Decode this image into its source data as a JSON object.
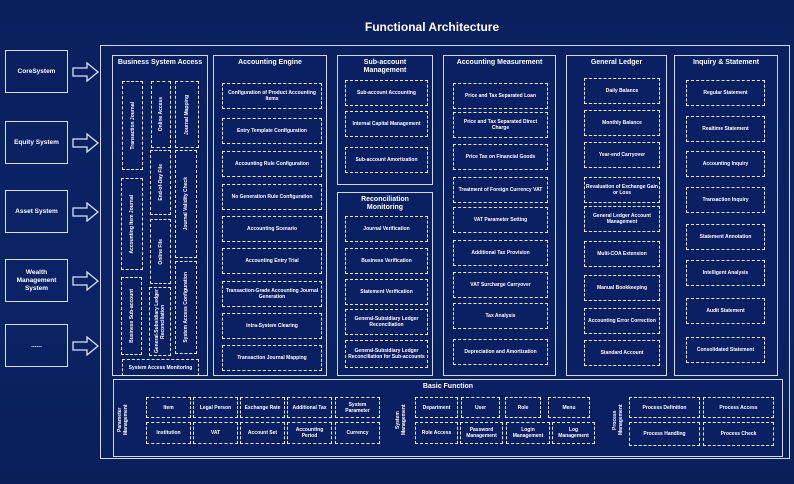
{
  "title": "Functional Architecture",
  "systems": [
    "CoreSystem",
    "Equity System",
    "Asset System",
    "Wealth Management System",
    "......"
  ],
  "business_system_access": {
    "title": "Business System Access",
    "items": [
      "Transaction Journal",
      "Online Access",
      "Journal Mapping",
      "End-of-Day File",
      "Journal Validity Check",
      "Accounting Item Journal",
      "Online File",
      "System Access Configuration",
      "Business Sub-account",
      "General-Subsidiary Ledger Reconciliation",
      "System Access Monitoring"
    ]
  },
  "accounting_engine": {
    "title": "Accounting Engine",
    "items": [
      "Configuration of Product Accounting Items",
      "Entry Template Configuration",
      "Accounting Rule Configuration",
      "No Generation Rule Configuration",
      "Accounting Scenario",
      "Accounting Entry Trial",
      "Transaction-Grade Accounting Journal Generation",
      "Intra-System Clearing",
      "Transaction Journal Mapping"
    ]
  },
  "sub_account_management": {
    "title": "Sub-account Management",
    "items": [
      "Sub-account Accounting",
      "Internal Capital Management",
      "Sub-account Amortization"
    ]
  },
  "reconciliation_monitoring": {
    "title": "Reconciliation Monitoring",
    "items": [
      "Journal Verification",
      "Business Verification",
      "Statement Verification",
      "General-Subsidiary Ledger Reconciliation",
      "General-Subsidiary Ledger Reconciliation for Sub-accounts"
    ]
  },
  "accounting_measurement": {
    "title": "Accounting Measurement",
    "items": [
      "Price and Tax Separated Loan",
      "Price and Tax Separated Direct Charge",
      "Price Tax on Financial Goods",
      "Treatment of Foreign Currency VAT",
      "VAT Parameter Setting",
      "Additional Tax Provision",
      "VAT Surcharge Carryover",
      "Tax Analysis",
      "Depreciation and Amortization"
    ]
  },
  "general_ledger": {
    "title": "General Ledger",
    "items": [
      "Daily Balance",
      "Monthly Balance",
      "Year-end Carryover",
      "Revaluation of Exchange Gain or Loss",
      "General Ledger Account Management",
      "Multi-COA Extension",
      "Manual Bookkeeping",
      "Accounting Error Correction",
      "Standard Account"
    ]
  },
  "inquiry_statement": {
    "title": "Inquiry & Statement",
    "items": [
      "Regular Statement",
      "Realtime Statement",
      "Accounting Inquiry",
      "Transaction Inquiry",
      "Statement Annotation",
      "Intelligent Analysis",
      "Audit Statement",
      "Consolidated Statement"
    ]
  },
  "basic_function": {
    "title": "Basic Function",
    "parameter_management": {
      "label": "Parameter Management",
      "items": [
        "Item",
        "Legal Person",
        "Exchange Rate",
        "Additional Tax",
        "System Parameter",
        "Institution",
        "VAT",
        "Account Set",
        "Accounting Period",
        "Currency"
      ]
    },
    "system_management": {
      "label": "System Management",
      "items": [
        "Department",
        "User",
        "Role",
        "Menu",
        "Role Access",
        "Password Management",
        "Login Management",
        "Log Management"
      ]
    },
    "process_management": {
      "label": "Process Management",
      "items": [
        "Process Definition",
        "Process Access",
        "Process Handling",
        "Process Check"
      ]
    }
  },
  "colors": {
    "background": "#0a2062",
    "border": "#cfd9f0",
    "text": "#ffffff"
  }
}
